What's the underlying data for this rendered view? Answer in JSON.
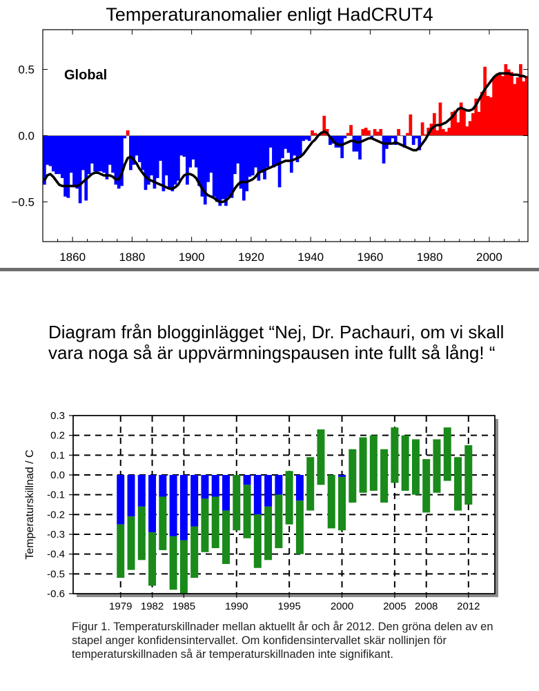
{
  "chart_data": [
    {
      "type": "bar",
      "title": "Temperaturanomalier enligt HadCRUT4",
      "annotation": "Global",
      "xlabel": "",
      "ylabel": "",
      "xlim": [
        1850,
        2013
      ],
      "ylim": [
        -0.8,
        0.8
      ],
      "x_ticks": [
        1860,
        1880,
        1900,
        1920,
        1940,
        1960,
        1980,
        2000
      ],
      "y_ticks": [
        {
          "v": 0.5,
          "label": "0.5"
        },
        {
          "v": 0.0,
          "label": "0.0"
        },
        {
          "v": -0.5,
          "label": "−0.5"
        }
      ],
      "grid": false,
      "colors": {
        "negative": "#0000ff",
        "positive": "#ff0000",
        "smooth": "#000000",
        "zero_line": "#7f7f7f"
      },
      "x": [
        1850,
        1851,
        1852,
        1853,
        1854,
        1855,
        1856,
        1857,
        1858,
        1859,
        1860,
        1861,
        1862,
        1863,
        1864,
        1865,
        1866,
        1867,
        1868,
        1869,
        1870,
        1871,
        1872,
        1873,
        1874,
        1875,
        1876,
        1877,
        1878,
        1879,
        1880,
        1881,
        1882,
        1883,
        1884,
        1885,
        1886,
        1887,
        1888,
        1889,
        1890,
        1891,
        1892,
        1893,
        1894,
        1895,
        1896,
        1897,
        1898,
        1899,
        1900,
        1901,
        1902,
        1903,
        1904,
        1905,
        1906,
        1907,
        1908,
        1909,
        1910,
        1911,
        1912,
        1913,
        1914,
        1915,
        1916,
        1917,
        1918,
        1919,
        1920,
        1921,
        1922,
        1923,
        1924,
        1925,
        1926,
        1927,
        1928,
        1929,
        1930,
        1931,
        1932,
        1933,
        1934,
        1935,
        1936,
        1937,
        1938,
        1939,
        1940,
        1941,
        1942,
        1943,
        1944,
        1945,
        1946,
        1947,
        1948,
        1949,
        1950,
        1951,
        1952,
        1953,
        1954,
        1955,
        1956,
        1957,
        1958,
        1959,
        1960,
        1961,
        1962,
        1963,
        1964,
        1965,
        1966,
        1967,
        1968,
        1969,
        1970,
        1971,
        1972,
        1973,
        1974,
        1975,
        1976,
        1977,
        1978,
        1979,
        1980,
        1981,
        1982,
        1983,
        1984,
        1985,
        1986,
        1987,
        1988,
        1989,
        1990,
        1991,
        1992,
        1993,
        1994,
        1995,
        1996,
        1997,
        1998,
        1999,
        2000,
        2001,
        2002,
        2003,
        2004,
        2005,
        2006,
        2007,
        2008,
        2009,
        2010,
        2011,
        2012
      ],
      "values": [
        -0.37,
        -0.22,
        -0.23,
        -0.27,
        -0.29,
        -0.29,
        -0.32,
        -0.46,
        -0.47,
        -0.28,
        -0.39,
        -0.4,
        -0.51,
        -0.26,
        -0.49,
        -0.29,
        -0.21,
        -0.27,
        -0.27,
        -0.27,
        -0.28,
        -0.33,
        -0.22,
        -0.28,
        -0.37,
        -0.4,
        -0.38,
        -0.02,
        0.04,
        -0.26,
        -0.22,
        -0.15,
        -0.2,
        -0.26,
        -0.41,
        -0.37,
        -0.3,
        -0.4,
        -0.32,
        -0.19,
        -0.42,
        -0.3,
        -0.4,
        -0.42,
        -0.37,
        -0.34,
        -0.15,
        -0.16,
        -0.37,
        -0.24,
        -0.18,
        -0.24,
        -0.38,
        -0.46,
        -0.52,
        -0.35,
        -0.28,
        -0.46,
        -0.5,
        -0.53,
        -0.48,
        -0.53,
        -0.46,
        -0.47,
        -0.29,
        -0.21,
        -0.4,
        -0.49,
        -0.42,
        -0.31,
        -0.3,
        -0.24,
        -0.34,
        -0.28,
        -0.33,
        -0.24,
        -0.09,
        -0.24,
        -0.22,
        -0.39,
        -0.17,
        -0.1,
        -0.13,
        -0.28,
        -0.15,
        -0.2,
        -0.15,
        -0.04,
        -0.03,
        -0.04,
        0.04,
        0.02,
        0.01,
        0.02,
        0.15,
        0.05,
        -0.07,
        -0.06,
        -0.09,
        -0.09,
        -0.17,
        -0.02,
        0.02,
        0.08,
        -0.12,
        -0.12,
        -0.18,
        0.05,
        0.06,
        0.04,
        -0.02,
        0.05,
        0.03,
        0.05,
        -0.21,
        -0.1,
        -0.06,
        -0.02,
        -0.07,
        0.05,
        0.0,
        -0.09,
        0.02,
        0.16,
        -0.07,
        -0.02,
        -0.11,
        0.1,
        0.01,
        0.06,
        0.09,
        0.17,
        0.04,
        0.25,
        0.05,
        0.03,
        0.06,
        0.18,
        0.19,
        0.1,
        0.25,
        0.2,
        0.07,
        0.11,
        0.17,
        0.28,
        0.18,
        0.33,
        0.52,
        0.3,
        0.29,
        0.44,
        0.46,
        0.47,
        0.45,
        0.54,
        0.5,
        0.48,
        0.39,
        0.44,
        0.54,
        0.41,
        0.45
      ],
      "smooth": [
        -0.34,
        -0.3,
        -0.29,
        -0.31,
        -0.34,
        -0.37,
        -0.38,
        -0.38,
        -0.38,
        -0.38,
        -0.38,
        -0.38,
        -0.37,
        -0.35,
        -0.33,
        -0.31,
        -0.29,
        -0.28,
        -0.28,
        -0.29,
        -0.3,
        -0.3,
        -0.3,
        -0.31,
        -0.33,
        -0.33,
        -0.29,
        -0.22,
        -0.17,
        -0.16,
        -0.18,
        -0.21,
        -0.25,
        -0.28,
        -0.31,
        -0.33,
        -0.34,
        -0.35,
        -0.36,
        -0.37,
        -0.38,
        -0.39,
        -0.4,
        -0.4,
        -0.39,
        -0.37,
        -0.33,
        -0.3,
        -0.29,
        -0.29,
        -0.3,
        -0.32,
        -0.36,
        -0.4,
        -0.43,
        -0.45,
        -0.46,
        -0.47,
        -0.49,
        -0.5,
        -0.5,
        -0.49,
        -0.47,
        -0.44,
        -0.4,
        -0.37,
        -0.35,
        -0.35,
        -0.35,
        -0.34,
        -0.33,
        -0.31,
        -0.28,
        -0.27,
        -0.26,
        -0.25,
        -0.24,
        -0.23,
        -0.22,
        -0.21,
        -0.2,
        -0.19,
        -0.19,
        -0.19,
        -0.18,
        -0.17,
        -0.16,
        -0.14,
        -0.11,
        -0.08,
        -0.05,
        -0.03,
        0.0,
        0.02,
        0.03,
        0.02,
        -0.01,
        -0.04,
        -0.06,
        -0.07,
        -0.07,
        -0.06,
        -0.05,
        -0.04,
        -0.04,
        -0.05,
        -0.05,
        -0.04,
        -0.03,
        -0.02,
        -0.02,
        -0.03,
        -0.04,
        -0.05,
        -0.06,
        -0.06,
        -0.06,
        -0.06,
        -0.05,
        -0.06,
        -0.07,
        -0.08,
        -0.09,
        -0.1,
        -0.11,
        -0.11,
        -0.09,
        -0.06,
        -0.03,
        0.01,
        0.05,
        0.07,
        0.08,
        0.08,
        0.09,
        0.1,
        0.12,
        0.14,
        0.17,
        0.2,
        0.21,
        0.2,
        0.19,
        0.19,
        0.2,
        0.23,
        0.27,
        0.31,
        0.35,
        0.38,
        0.41,
        0.44,
        0.46,
        0.47,
        0.47,
        0.47,
        0.47,
        0.46,
        0.46,
        0.46,
        0.45,
        0.45,
        0.44
      ]
    },
    {
      "type": "bar",
      "title": "",
      "xlabel": "",
      "ylabel": "Temperaturskillnad / C",
      "xlim": [
        1974.5,
        2014.5
      ],
      "ylim": [
        -0.6,
        0.3
      ],
      "x_ticks": [
        1979,
        1982,
        1985,
        1990,
        1995,
        2000,
        2005,
        2008,
        2012
      ],
      "y_ticks": [
        {
          "v": 0.3,
          "label": "0.3"
        },
        {
          "v": 0.2,
          "label": "0.2"
        },
        {
          "v": 0.1,
          "label": "0.1"
        },
        {
          "v": 0.0,
          "label": "0.0"
        },
        {
          "v": -0.1,
          "label": "-0.1"
        },
        {
          "v": -0.2,
          "label": "-0.2"
        },
        {
          "v": -0.3,
          "label": "-0.3"
        },
        {
          "v": -0.4,
          "label": "-0.4"
        },
        {
          "v": -0.5,
          "label": "-0.5"
        },
        {
          "v": -0.6,
          "label": "-0.6"
        }
      ],
      "grid": true,
      "colors": {
        "difference": "#0000ff",
        "confidence_interval": "#1a8a1a",
        "grid": "#000000"
      },
      "series": [
        {
          "x": [
            1979,
            1980,
            1981,
            1982,
            1983,
            1984,
            1985,
            1986,
            1987,
            1988,
            1989,
            1990,
            1991,
            1992,
            1993,
            1994,
            1995,
            1996,
            1997,
            1998,
            1999,
            2000,
            2001,
            2002,
            2003,
            2004,
            2005,
            2006,
            2007,
            2008,
            2009,
            2010,
            2011,
            2012
          ],
          "ci_low": [
            -0.52,
            -0.48,
            -0.43,
            -0.56,
            -0.38,
            -0.58,
            -0.6,
            -0.52,
            -0.39,
            -0.37,
            -0.45,
            -0.28,
            -0.32,
            -0.47,
            -0.43,
            -0.37,
            -0.25,
            -0.4,
            -0.18,
            -0.05,
            -0.27,
            -0.28,
            -0.14,
            -0.09,
            -0.08,
            -0.14,
            -0.04,
            -0.08,
            -0.1,
            -0.19,
            -0.09,
            -0.03,
            -0.18,
            -0.15
          ],
          "ci_high": [
            -0.25,
            -0.21,
            -0.16,
            -0.29,
            -0.11,
            -0.31,
            -0.33,
            -0.26,
            -0.12,
            -0.11,
            -0.18,
            0.0,
            -0.05,
            -0.2,
            -0.16,
            -0.1,
            0.02,
            -0.13,
            0.09,
            0.23,
            0.0,
            -0.01,
            0.13,
            0.19,
            0.2,
            0.13,
            0.24,
            0.2,
            0.18,
            0.08,
            0.18,
            0.24,
            0.09,
            0.15
          ]
        }
      ]
    }
  ],
  "blog_caption": "Diagram från blogginlägget “Nej, Dr. Pachauri, om vi skall vara noga så är uppvärmningspausen inte fullt så lång! “",
  "figure_caption": "Figur 1. Temperaturskillnader mellan aktuellt år och år 2012. Den gröna delen av en stapel anger konfidensintervallet. Om konfidensintervallet skär nollinjen för temperaturskillnaden så är temperaturskillnaden inte signifikant."
}
